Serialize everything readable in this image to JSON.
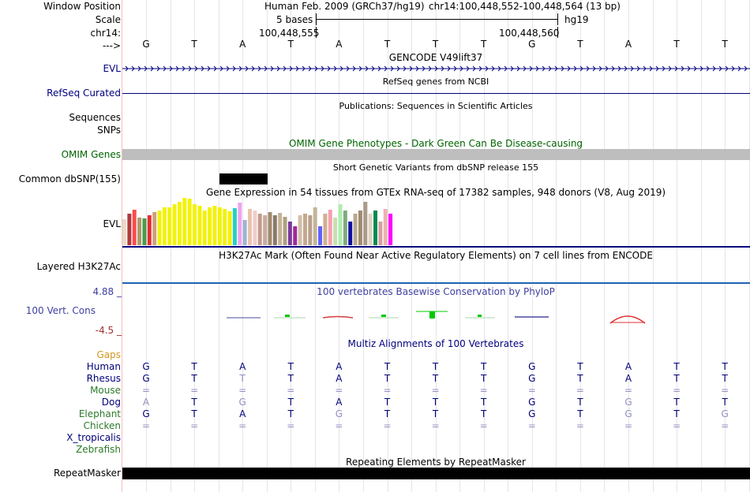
{
  "header": {
    "window_position_label": "Window Position",
    "scale_label": "Scale",
    "chrom_label": "chr14:",
    "arrow_label": "--->",
    "assembly": "Human Feb. 2009 (GRCh37/hg19)",
    "position": "chr14:100,448,552-100,448,564 (13 bp)",
    "scale_text": "5 bases",
    "scale_db": "hg19",
    "coord_left": "100,448,555",
    "coord_right": "100,448,560"
  },
  "sequence": [
    "G",
    "T",
    "A",
    "T",
    "A",
    "T",
    "T",
    "T",
    "G",
    "T",
    "A",
    "T",
    "T"
  ],
  "tracks": {
    "gencode": {
      "title": "GENCODE V49lift37",
      "label": "EVL"
    },
    "refseq": {
      "title": "RefSeq genes from NCBI",
      "label": "RefSeq Curated"
    },
    "publications": {
      "title": "Publications: Sequences in Scientific Articles",
      "label1": "Sequences",
      "label2": "SNPs"
    },
    "omim": {
      "title": "OMIM Gene Phenotypes - Dark Green Can Be Disease-causing",
      "label": "OMIM Genes"
    },
    "dbsnp": {
      "title": "Short Genetic Variants from dbSNP release 155",
      "label": "Common dbSNP(155)"
    },
    "gtex": {
      "title": "Gene Expression in 54 tissues from GTEx RNA-seq of 17382 samples, 948 donors (V8, Aug 2019)",
      "label": "EVL"
    },
    "h3k27ac": {
      "title": "H3K27Ac Mark (Often Found Near Active Regulatory Elements) on 7 cell lines from ENCODE",
      "label": "Layered H3K27Ac"
    },
    "phylop": {
      "title": "100 vertebrates Basewise Conservation by PhyloP",
      "label": "100 Vert. Cons",
      "max": "4.88 _",
      "min": "-4.5 _"
    },
    "multiz": {
      "title": "Multiz Alignments of 100 Vertebrates",
      "gaps_label": "Gaps"
    },
    "repeatmasker": {
      "title": "Repeating Elements by RepeatMasker",
      "label": "RepeatMasker"
    }
  },
  "gtex_bars": [
    {
      "v": 33,
      "c": "#E8DBC4"
    },
    {
      "v": 40,
      "c": "#B3373D"
    },
    {
      "v": 45,
      "c": "#FB4C4C"
    },
    {
      "v": 35,
      "c": "#AA9A6A"
    },
    {
      "v": 34,
      "c": "#4C9C4C"
    },
    {
      "v": 38,
      "c": "#E42E2E"
    },
    {
      "v": 42,
      "c": "#CCA080"
    },
    {
      "v": 44,
      "c": "#F2F20C"
    },
    {
      "v": 48,
      "c": "#F2F20C"
    },
    {
      "v": 48,
      "c": "#F2F20C"
    },
    {
      "v": 52,
      "c": "#F2F20C"
    },
    {
      "v": 55,
      "c": "#F2F20C"
    },
    {
      "v": 60,
      "c": "#F2F20C"
    },
    {
      "v": 59,
      "c": "#F2F20C"
    },
    {
      "v": 52,
      "c": "#F2F20C"
    },
    {
      "v": 50,
      "c": "#F2F20C"
    },
    {
      "v": 44,
      "c": "#F2F20C"
    },
    {
      "v": 48,
      "c": "#F2F20C"
    },
    {
      "v": 50,
      "c": "#F2F20C"
    },
    {
      "v": 48,
      "c": "#F2F20C"
    },
    {
      "v": 46,
      "c": "#F2F20C"
    },
    {
      "v": 43,
      "c": "#F2F20C"
    },
    {
      "v": 47,
      "c": "#25D1C4"
    },
    {
      "v": 54,
      "c": "#F0A2F0"
    },
    {
      "v": 32,
      "c": "#A0B4D0"
    },
    {
      "v": 46,
      "c": "#E8C3B0"
    },
    {
      "v": 44,
      "c": "#F0CCCC"
    },
    {
      "v": 40,
      "c": "#C49A8A"
    },
    {
      "v": 38,
      "c": "#CCAAA0"
    },
    {
      "v": 42,
      "c": "#A08A6A"
    },
    {
      "v": 38,
      "c": "#8A7A6A"
    },
    {
      "v": 41,
      "c": "#C4B497"
    },
    {
      "v": 36,
      "c": "#B0A080"
    },
    {
      "v": 30,
      "c": "#7A3A9A"
    },
    {
      "v": 24,
      "c": "#A02A9A"
    },
    {
      "v": 38,
      "c": "#D2BFA8"
    },
    {
      "v": 40,
      "c": "#C4A890"
    },
    {
      "v": 38,
      "c": "#B8A08C"
    },
    {
      "v": 48,
      "c": "#C4B497"
    },
    {
      "v": 24,
      "c": "#6060FF"
    },
    {
      "v": 40,
      "c": "#D0B090"
    },
    {
      "v": 45,
      "c": "#F5A0B0"
    },
    {
      "v": 35,
      "c": "#C8E0B0"
    },
    {
      "v": 52,
      "c": "#B0EBB0"
    },
    {
      "v": 44,
      "c": "#80AA80"
    },
    {
      "v": 30,
      "c": "#1010A0"
    },
    {
      "v": 40,
      "c": "#B8A890"
    },
    {
      "v": 44,
      "c": "#A08A70"
    },
    {
      "v": 55,
      "c": "#AA9A88"
    },
    {
      "v": 40,
      "c": "#E0D0C0"
    },
    {
      "v": 44,
      "c": "#008A50"
    },
    {
      "v": 30,
      "c": "#D0A0A0"
    },
    {
      "v": 46,
      "c": "#F0B0B0"
    },
    {
      "v": 40,
      "c": "#FF00FF"
    }
  ],
  "alignment": {
    "species": [
      {
        "name": "Human",
        "color": "#00007A"
      },
      {
        "name": "Rhesus",
        "color": "#00007A"
      },
      {
        "name": "Mouse",
        "color": "#2A7A2A"
      },
      {
        "name": "Dog",
        "color": "#00007A"
      },
      {
        "name": "Elephant",
        "color": "#2A7A2A"
      },
      {
        "name": "Chicken",
        "color": "#2A7A2A"
      },
      {
        "name": "X_tropicalis",
        "color": "#00007A"
      },
      {
        "name": "Zebrafish",
        "color": "#2A7A2A"
      }
    ],
    "rows": [
      [
        "G",
        "T",
        "A",
        "T",
        "A",
        "T",
        "T",
        "T",
        "G",
        "T",
        "A",
        "T",
        "T"
      ],
      [
        "G",
        "T",
        "T",
        "T",
        "A",
        "T",
        "T",
        "T",
        "G",
        "T",
        "A",
        "T",
        "T"
      ],
      [
        "=",
        "=",
        "=",
        "=",
        "=",
        "=",
        "=",
        "=",
        "=",
        "=",
        "=",
        "=",
        "="
      ],
      [
        "A",
        "T",
        "G",
        "T",
        "A",
        "T",
        "T",
        "T",
        "G",
        "T",
        "G",
        "T",
        "T"
      ],
      [
        "G",
        "T",
        "A",
        "T",
        "G",
        "T",
        "T",
        "T",
        "G",
        "T",
        "G",
        "T",
        "G"
      ],
      [
        "=",
        "=",
        "=",
        "=",
        "=",
        "=",
        "=",
        "=",
        "=",
        "=",
        "=",
        "=",
        "="
      ],
      [
        "",
        "",
        "",
        "",
        "",
        "",
        "",
        "",
        "",
        "",
        "",
        "",
        ""
      ],
      [
        "",
        "",
        "",
        "",
        "",
        "",
        "",
        "",
        "",
        "",
        "",
        "",
        ""
      ]
    ],
    "dim": [
      [
        false,
        false,
        false,
        false,
        false,
        false,
        false,
        false,
        false,
        false,
        false,
        false,
        false
      ],
      [
        false,
        false,
        true,
        false,
        false,
        false,
        false,
        false,
        false,
        false,
        false,
        false,
        false
      ],
      [
        true,
        true,
        true,
        true,
        true,
        true,
        true,
        true,
        true,
        true,
        true,
        true,
        true
      ],
      [
        true,
        false,
        true,
        false,
        false,
        false,
        false,
        false,
        false,
        false,
        true,
        false,
        false
      ],
      [
        false,
        false,
        false,
        false,
        true,
        false,
        false,
        false,
        false,
        false,
        true,
        false,
        true
      ],
      [
        true,
        true,
        true,
        true,
        true,
        true,
        true,
        true,
        true,
        true,
        true,
        true,
        true
      ],
      [
        false,
        false,
        false,
        false,
        false,
        false,
        false,
        false,
        false,
        false,
        false,
        false,
        false
      ],
      [
        false,
        false,
        false,
        false,
        false,
        false,
        false,
        false,
        false,
        false,
        false,
        false,
        false
      ]
    ]
  },
  "colors": {
    "navy": "#000080",
    "dark_green": "#006400",
    "gaps": "#D2961E",
    "phylop_title": "#4040A0",
    "phylop_max": "#4040A0",
    "phylop_min": "#A03030",
    "h3k27ac_line": "#1E64B4",
    "conserved": "#00C800",
    "accelerated": "#E03030"
  }
}
